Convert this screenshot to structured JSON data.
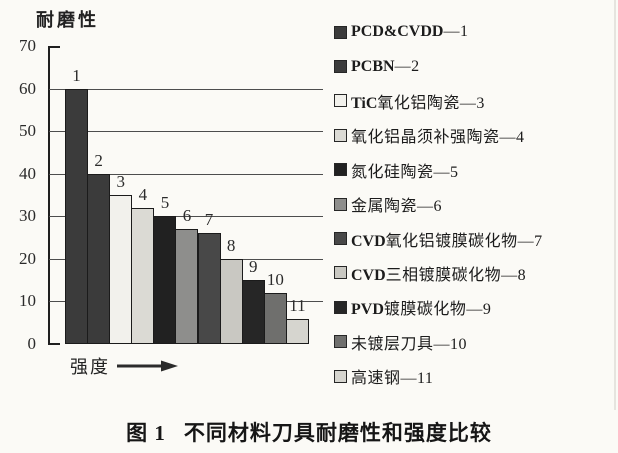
{
  "figure": {
    "caption_no": "图 1",
    "caption_text": "不同材料刀具耐磨性和强度比较"
  },
  "chart_data": {
    "type": "bar",
    "ylabel": "耐磨性",
    "xlabel": "强度",
    "ylim": [
      0,
      70
    ],
    "yticks": [
      0,
      10,
      20,
      30,
      40,
      50,
      60,
      70
    ],
    "grid": "horizontal gridlines at each 10",
    "legend_position": "right",
    "categories": [
      "1",
      "2",
      "3",
      "4",
      "5",
      "6",
      "7",
      "8",
      "9",
      "10",
      "11"
    ],
    "values": [
      60,
      40,
      35,
      32,
      30,
      27,
      26,
      20,
      15,
      12,
      6
    ],
    "bar_colors": [
      "#3b3b3b",
      "#3b3b3b",
      "#f2f1ec",
      "#dbdad4",
      "#212121",
      "#8e8e8c",
      "#484848",
      "#c9c8c2",
      "#262626",
      "#6f6f6d",
      "#d6d5cf"
    ],
    "legend": [
      {
        "bold": "PCD&CVDD",
        "text": "",
        "num": "1",
        "color": "#3b3b3b"
      },
      {
        "bold": "PCBN",
        "text": "",
        "num": "2",
        "color": "#3b3b3b"
      },
      {
        "bold": "TiC",
        "text": "氧化铝陶瓷",
        "num": "3",
        "color": "#f2f1ec"
      },
      {
        "bold": "",
        "text": "氧化铝晶须补强陶瓷",
        "num": "4",
        "color": "#dbdad4"
      },
      {
        "bold": "",
        "text": "氮化硅陶瓷",
        "num": "5",
        "color": "#212121"
      },
      {
        "bold": "",
        "text": "金属陶瓷",
        "num": "6",
        "color": "#8e8e8c"
      },
      {
        "bold": "CVD",
        "text": "氧化铝镀膜碳化物",
        "num": "7",
        "color": "#484848"
      },
      {
        "bold": "CVD",
        "text": "三相镀膜碳化物",
        "num": "8",
        "color": "#c9c8c2"
      },
      {
        "bold": "PVD",
        "text": "镀膜碳化物",
        "num": "9",
        "color": "#262626"
      },
      {
        "bold": "",
        "text": "未镀层刀具",
        "num": "10",
        "color": "#6f6f6d"
      },
      {
        "bold": "",
        "text": "高速钢",
        "num": "11",
        "color": "#d6d5cf"
      }
    ]
  }
}
